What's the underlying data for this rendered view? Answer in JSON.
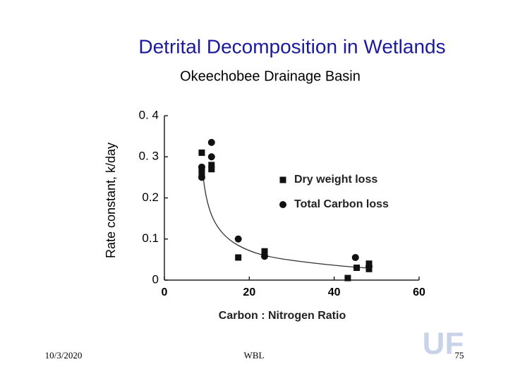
{
  "slide": {
    "date": "10/3/2020",
    "footer": "WBL",
    "page": "75",
    "logo": "UF"
  },
  "chart_data": {
    "type": "scatter",
    "title": "Detrital Decomposition in Wetlands",
    "subtitle": "Okeechobee Drainage Basin",
    "x_label": "Carbon : Nitrogen Ratio",
    "y_label": "Rate constant, k/day",
    "xlim": [
      0,
      60
    ],
    "xticks": [
      0,
      20,
      40,
      60
    ],
    "ylim": [
      0,
      0.4
    ],
    "yticks": [
      0,
      0.1,
      0.2,
      {
        "value": 0.3,
        "label": "0. 3"
      },
      {
        "value": 0.4,
        "label": "0. 4"
      }
    ],
    "legend": "right",
    "series": [
      {
        "name": "Dry weight loss",
        "marker": "square",
        "color": "#111111",
        "x": [
          8.8,
          8.8,
          8.8,
          11.1,
          11.1,
          17.4,
          23.6,
          43.2,
          45.3,
          48.2,
          48.2
        ],
        "values": [
          0.31,
          0.27,
          0.26,
          0.28,
          0.27,
          0.055,
          0.07,
          0.005,
          0.03,
          0.04,
          0.027
        ]
      },
      {
        "name": "Total Carbon loss",
        "marker": "circle",
        "color": "#111111",
        "x": [
          11.1,
          11.1,
          8.8,
          8.8,
          17.4,
          23.6,
          45,
          48.2
        ],
        "values": [
          0.335,
          0.3,
          0.275,
          0.25,
          0.1,
          0.058,
          0.055,
          0.033
        ]
      }
    ]
  }
}
